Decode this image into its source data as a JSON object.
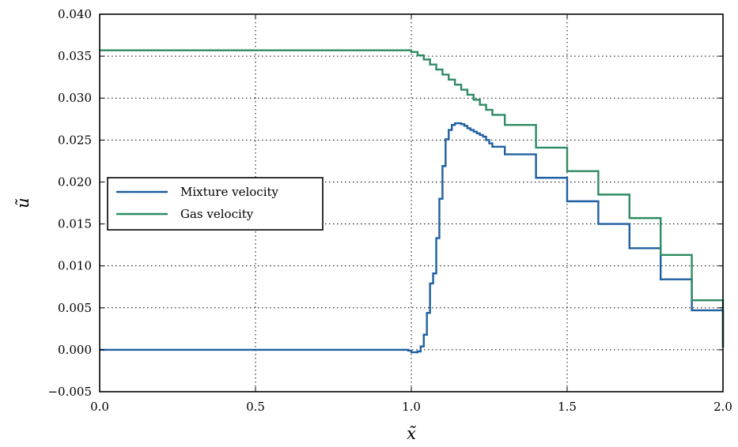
{
  "chart_data": {
    "type": "line",
    "title": "",
    "xlabel": "x̃",
    "ylabel": "ũ",
    "xlim": [
      0.0,
      2.0
    ],
    "ylim": [
      -0.005,
      0.04
    ],
    "grid": true,
    "legend_placement": "center-left",
    "x_ticks": [
      0.0,
      0.5,
      1.0,
      1.5,
      2.0
    ],
    "x_tick_labels": [
      "0.0",
      "0.5",
      "1.0",
      "1.5",
      "2.0"
    ],
    "y_ticks": [
      -0.005,
      0.0,
      0.005,
      0.01,
      0.015,
      0.02,
      0.025,
      0.03,
      0.035,
      0.04
    ],
    "y_tick_labels": [
      "−0.005",
      "0.000",
      "0.005",
      "0.010",
      "0.015",
      "0.020",
      "0.025",
      "0.030",
      "0.035",
      "0.040"
    ],
    "series": [
      {
        "name": "Mixture velocity",
        "color": "#1f5fa0",
        "step": true,
        "x": [
          0.0,
          0.98,
          0.99,
          1.0,
          1.01,
          1.02,
          1.03,
          1.04,
          1.05,
          1.06,
          1.07,
          1.08,
          1.09,
          1.1,
          1.11,
          1.12,
          1.13,
          1.14,
          1.15,
          1.16,
          1.17,
          1.18,
          1.19,
          1.2,
          1.21,
          1.22,
          1.23,
          1.24,
          1.25,
          1.26,
          1.3,
          1.4,
          1.5,
          1.6,
          1.7,
          1.8,
          1.9,
          2.0
        ],
        "y": [
          0.0,
          0.0,
          -0.0001,
          -0.0003,
          -0.0003,
          -0.0002,
          0.0004,
          0.0018,
          0.0044,
          0.0079,
          0.0091,
          0.0133,
          0.018,
          0.0219,
          0.0251,
          0.0262,
          0.0268,
          0.027,
          0.027,
          0.0269,
          0.0267,
          0.0264,
          0.0262,
          0.026,
          0.0258,
          0.0256,
          0.0254,
          0.025,
          0.0246,
          0.0242,
          0.0233,
          0.0205,
          0.0177,
          0.015,
          0.0121,
          0.0084,
          0.0047,
          0.0003
        ]
      },
      {
        "name": "Gas velocity",
        "color": "#2e8b62",
        "step": true,
        "x": [
          0.0,
          0.98,
          1.0,
          1.02,
          1.04,
          1.06,
          1.08,
          1.1,
          1.12,
          1.14,
          1.16,
          1.18,
          1.2,
          1.22,
          1.24,
          1.26,
          1.3,
          1.4,
          1.5,
          1.6,
          1.7,
          1.8,
          1.9,
          2.0
        ],
        "y": [
          0.0357,
          0.0357,
          0.0355,
          0.0351,
          0.0346,
          0.034,
          0.0334,
          0.0328,
          0.0322,
          0.0316,
          0.031,
          0.0304,
          0.0298,
          0.0292,
          0.0286,
          0.028,
          0.0268,
          0.0241,
          0.0213,
          0.0185,
          0.0157,
          0.0113,
          0.0059,
          0.0003
        ]
      }
    ]
  }
}
